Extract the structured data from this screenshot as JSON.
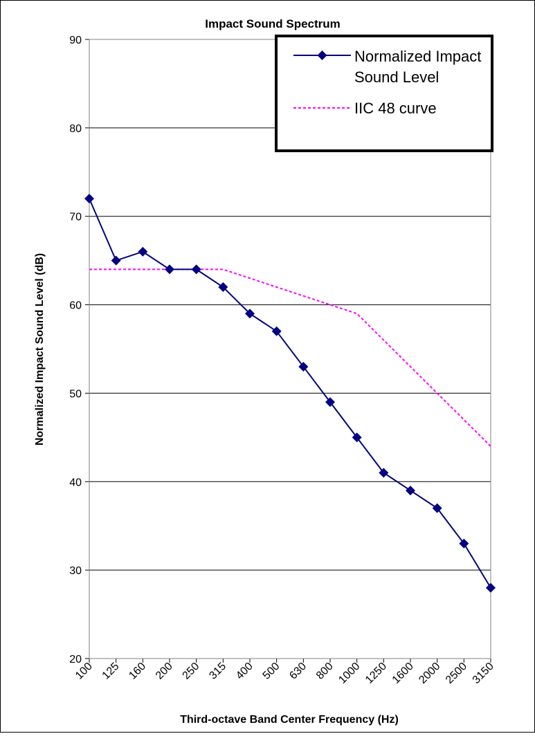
{
  "chart_data": {
    "type": "line",
    "title": "Impact Sound Spectrum",
    "xlabel": "Third-octave Band Center Frequency (Hz)",
    "ylabel": "Normalized Impact Sound Level (dB)",
    "categories": [
      "100",
      "125",
      "160",
      "200",
      "250",
      "315",
      "400",
      "500",
      "630",
      "800",
      "1000",
      "1250",
      "1600",
      "2000",
      "2500",
      "3150"
    ],
    "ylim": [
      20,
      90
    ],
    "yticks": [
      20,
      30,
      40,
      50,
      60,
      70,
      80,
      90
    ],
    "grid": "horizontal",
    "legend_position": "top-right",
    "series": [
      {
        "name": "Normalized Impact Sound Level",
        "color": "#000080",
        "style": "solid-diamond",
        "values": [
          72,
          65,
          66,
          64,
          64,
          62,
          59,
          57,
          53,
          49,
          45,
          41,
          39,
          37,
          33,
          28
        ]
      },
      {
        "name": "IIC 48 curve",
        "color": "#ff00ff",
        "style": "dashed",
        "values": [
          64,
          64,
          64,
          64,
          64,
          64,
          63,
          62,
          61,
          60,
          59,
          56,
          53,
          50,
          47,
          44
        ]
      }
    ],
    "legend": {
      "line1": "Normalized Impact",
      "line2": "Sound Level",
      "line3": "IIC 48 curve"
    }
  }
}
